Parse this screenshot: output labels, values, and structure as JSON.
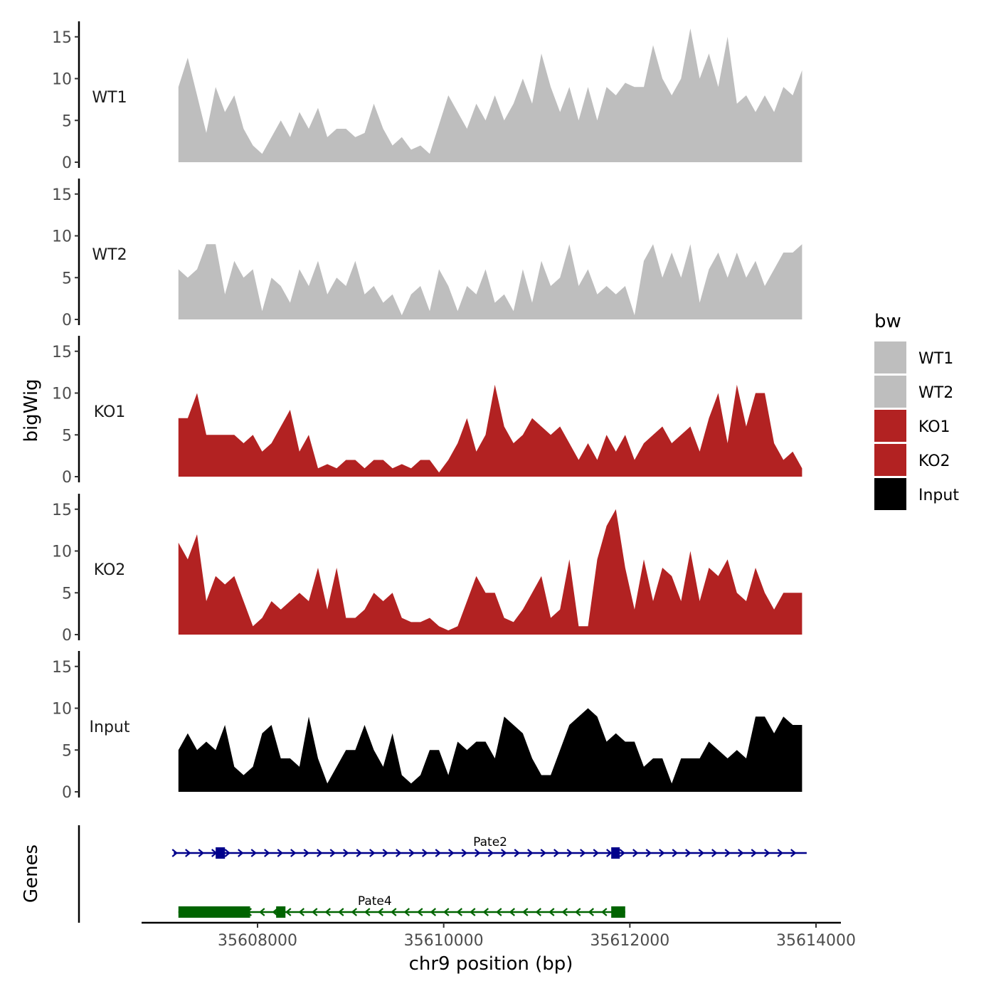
{
  "chart_data": {
    "type": "area",
    "title": "",
    "ylabel": "bigWig",
    "xlabel": "chr9 position (bp)",
    "ylim": [
      0,
      16
    ],
    "yticks": [
      0,
      5,
      10,
      15
    ],
    "xlim": [
      35606800,
      35614500
    ],
    "xticks": [
      35608000,
      35610000,
      35612000,
      35614000
    ],
    "xtick_labels": [
      "35608000",
      "35610000",
      "35612000",
      "35614000"
    ],
    "legend": {
      "title": "bw",
      "placement": "right",
      "entries": [
        {
          "label": "WT1",
          "color": "#BEBEBE"
        },
        {
          "label": "WT2",
          "color": "#BEBEBE"
        },
        {
          "label": "KO1",
          "color": "#B22222"
        },
        {
          "label": "KO2",
          "color": "#B22222"
        },
        {
          "label": "Input",
          "color": "#000000"
        }
      ]
    },
    "series": [
      {
        "name": "WT1",
        "label": "WT1",
        "color": "#BEBEBE",
        "x": [
          35607150,
          35607250,
          35607350,
          35607450,
          35607550,
          35607650,
          35607750,
          35607850,
          35607950,
          35608050,
          35608150,
          35608250,
          35608350,
          35608450,
          35608550,
          35608650,
          35608750,
          35608850,
          35608950,
          35609050,
          35609150,
          35609250,
          35609350,
          35609450,
          35609550,
          35609650,
          35609750,
          35609850,
          35609950,
          35610050,
          35610150,
          35610250,
          35610350,
          35610450,
          35610550,
          35610650,
          35610750,
          35610850,
          35610950,
          35611050,
          35611150,
          35611250,
          35611350,
          35611450,
          35611550,
          35611650,
          35611750,
          35611850,
          35611950,
          35612050,
          35612150,
          35612250,
          35612350,
          35612450,
          35612550,
          35612650,
          35612750,
          35612850,
          35612950,
          35613050,
          35613150,
          35613250,
          35613350,
          35613450,
          35613550,
          35613650,
          35613750,
          35613850
        ],
        "values": [
          9,
          12.5,
          8,
          3.5,
          9,
          6,
          8,
          4,
          2,
          1,
          3,
          5,
          3,
          6,
          4,
          6.5,
          3,
          4,
          4,
          3,
          3.5,
          7,
          4,
          2,
          3,
          1.5,
          2,
          1,
          4.5,
          8,
          6,
          4,
          7,
          5,
          8,
          5,
          7,
          10,
          7,
          13,
          9,
          6,
          9,
          5,
          9,
          5,
          9,
          8,
          9.5,
          9,
          9,
          14,
          10,
          8,
          10,
          16,
          10,
          13,
          9,
          15,
          7,
          8,
          6,
          8,
          6,
          9,
          8,
          11
        ]
      },
      {
        "name": "WT2",
        "label": "WT2",
        "color": "#BEBEBE",
        "x": [
          35607150,
          35607250,
          35607350,
          35607450,
          35607550,
          35607650,
          35607750,
          35607850,
          35607950,
          35608050,
          35608150,
          35608250,
          35608350,
          35608450,
          35608550,
          35608650,
          35608750,
          35608850,
          35608950,
          35609050,
          35609150,
          35609250,
          35609350,
          35609450,
          35609550,
          35609650,
          35609750,
          35609850,
          35609950,
          35610050,
          35610150,
          35610250,
          35610350,
          35610450,
          35610550,
          35610650,
          35610750,
          35610850,
          35610950,
          35611050,
          35611150,
          35611250,
          35611350,
          35611450,
          35611550,
          35611650,
          35611750,
          35611850,
          35611950,
          35612050,
          35612150,
          35612250,
          35612350,
          35612450,
          35612550,
          35612650,
          35612750,
          35612850,
          35612950,
          35613050,
          35613150,
          35613250,
          35613350,
          35613450,
          35613550,
          35613650,
          35613750,
          35613850
        ],
        "values": [
          6,
          5,
          6,
          9,
          9,
          3,
          7,
          5,
          6,
          1,
          5,
          4,
          2,
          6,
          4,
          7,
          3,
          5,
          4,
          7,
          3,
          4,
          2,
          3,
          0.5,
          3,
          4,
          1,
          6,
          4,
          1,
          4,
          3,
          6,
          2,
          3,
          1,
          6,
          2,
          7,
          4,
          5,
          9,
          4,
          6,
          3,
          4,
          3,
          4,
          0.5,
          7,
          9,
          5,
          8,
          5,
          9,
          2,
          6,
          8,
          5,
          8,
          5,
          7,
          4,
          6,
          8,
          8,
          9
        ]
      },
      {
        "name": "KO1",
        "label": "KO1",
        "color": "#B22222",
        "x": [
          35607150,
          35607250,
          35607350,
          35607450,
          35607550,
          35607650,
          35607750,
          35607850,
          35607950,
          35608050,
          35608150,
          35608250,
          35608350,
          35608450,
          35608550,
          35608650,
          35608750,
          35608850,
          35608950,
          35609050,
          35609150,
          35609250,
          35609350,
          35609450,
          35609550,
          35609650,
          35609750,
          35609850,
          35609950,
          35610050,
          35610150,
          35610250,
          35610350,
          35610450,
          35610550,
          35610650,
          35610750,
          35610850,
          35610950,
          35611050,
          35611150,
          35611250,
          35611350,
          35611450,
          35611550,
          35611650,
          35611750,
          35611850,
          35611950,
          35612050,
          35612150,
          35612250,
          35612350,
          35612450,
          35612550,
          35612650,
          35612750,
          35612850,
          35612950,
          35613050,
          35613150,
          35613250,
          35613350,
          35613450,
          35613550,
          35613650,
          35613750,
          35613850
        ],
        "values": [
          7,
          7,
          10,
          5,
          5,
          5,
          5,
          4,
          5,
          3,
          4,
          6,
          8,
          3,
          5,
          1,
          1.5,
          1,
          2,
          2,
          1,
          2,
          2,
          1,
          1.5,
          1,
          2,
          2,
          0.5,
          2,
          4,
          7,
          3,
          5,
          11,
          6,
          4,
          5,
          7,
          6,
          5,
          6,
          4,
          2,
          4,
          2,
          5,
          3,
          5,
          2,
          4,
          5,
          6,
          4,
          5,
          6,
          3,
          7,
          10,
          4,
          11,
          6,
          10,
          10,
          4,
          2,
          3,
          1
        ]
      },
      {
        "name": "KO2",
        "label": "KO2",
        "color": "#B22222",
        "x": [
          35607150,
          35607250,
          35607350,
          35607450,
          35607550,
          35607650,
          35607750,
          35607850,
          35607950,
          35608050,
          35608150,
          35608250,
          35608350,
          35608450,
          35608550,
          35608650,
          35608750,
          35608850,
          35608950,
          35609050,
          35609150,
          35609250,
          35609350,
          35609450,
          35609550,
          35609650,
          35609750,
          35609850,
          35609950,
          35610050,
          35610150,
          35610250,
          35610350,
          35610450,
          35610550,
          35610650,
          35610750,
          35610850,
          35610950,
          35611050,
          35611150,
          35611250,
          35611350,
          35611450,
          35611550,
          35611650,
          35611750,
          35611850,
          35611950,
          35612050,
          35612150,
          35612250,
          35612350,
          35612450,
          35612550,
          35612650,
          35612750,
          35612850,
          35612950,
          35613050,
          35613150,
          35613250,
          35613350,
          35613450,
          35613550,
          35613650,
          35613750,
          35613850
        ],
        "values": [
          11,
          9,
          12,
          4,
          7,
          6,
          7,
          4,
          1,
          2,
          4,
          3,
          4,
          5,
          4,
          8,
          3,
          8,
          2,
          2,
          3,
          5,
          4,
          5,
          2,
          1.5,
          1.5,
          2,
          1,
          0.5,
          1,
          4,
          7,
          5,
          5,
          2,
          1.5,
          3,
          5,
          7,
          2,
          3,
          9,
          1,
          1,
          9,
          13,
          15,
          8,
          3,
          9,
          4,
          8,
          7,
          4,
          10,
          4,
          8,
          7,
          9,
          5,
          4,
          8,
          5,
          3,
          5,
          5,
          5
        ]
      },
      {
        "name": "Input",
        "label": "Input",
        "color": "#000000",
        "x": [
          35607150,
          35607250,
          35607350,
          35607450,
          35607550,
          35607650,
          35607750,
          35607850,
          35607950,
          35608050,
          35608150,
          35608250,
          35608350,
          35608450,
          35608550,
          35608650,
          35608750,
          35608850,
          35608950,
          35609050,
          35609150,
          35609250,
          35609350,
          35609450,
          35609550,
          35609650,
          35609750,
          35609850,
          35609950,
          35610050,
          35610150,
          35610250,
          35610350,
          35610450,
          35610550,
          35610650,
          35610750,
          35610850,
          35610950,
          35611050,
          35611150,
          35611250,
          35611350,
          35611450,
          35611550,
          35611650,
          35611750,
          35611850,
          35611950,
          35612050,
          35612150,
          35612250,
          35612350,
          35612450,
          35612550,
          35612650,
          35612750,
          35612850,
          35612950,
          35613050,
          35613150,
          35613250,
          35613350,
          35613450,
          35613550,
          35613650,
          35613750,
          35613850
        ],
        "values": [
          5,
          7,
          5,
          6,
          5,
          8,
          3,
          2,
          3,
          7,
          8,
          4,
          4,
          3,
          9,
          4,
          1,
          3,
          5,
          5,
          8,
          5,
          3,
          7,
          2,
          1,
          2,
          5,
          5,
          2,
          6,
          5,
          6,
          6,
          4,
          9,
          8,
          7,
          4,
          2,
          2,
          5,
          8,
          9,
          10,
          9,
          6,
          7,
          6,
          6,
          3,
          4,
          4,
          1,
          4,
          4,
          4,
          6,
          5,
          4,
          5,
          4,
          9,
          9,
          7,
          9,
          8,
          8
        ]
      }
    ],
    "genes_track": {
      "label": "Genes",
      "genes": [
        {
          "name": "Pate2",
          "strand": "+",
          "color": "#00008B",
          "start": 35607100,
          "end": 35613900,
          "exons": [
            [
              35607550,
              35607650
            ],
            [
              35611800,
              35611880
            ]
          ]
        },
        {
          "name": "Pate4",
          "strand": "-",
          "color": "#006400",
          "start": 35607150,
          "end": 35611950,
          "exons": [
            [
              35607150,
              35607920
            ],
            [
              35608200,
              35608300
            ],
            [
              35611800,
              35611950
            ]
          ]
        }
      ]
    }
  }
}
